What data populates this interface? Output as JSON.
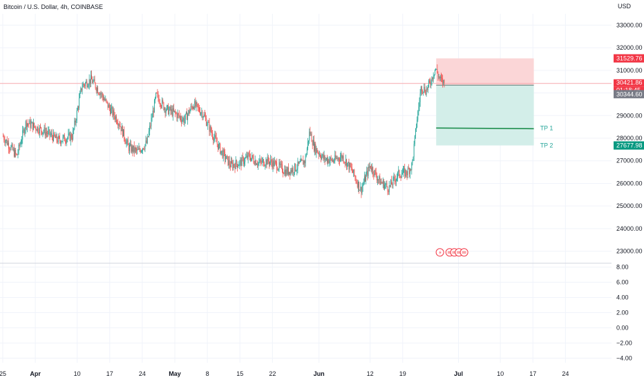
{
  "header": {
    "symbol_title": "Bitcoin / U.S. Dollar, 4h, COINBASE",
    "currency": "USD"
  },
  "colors": {
    "up": "#26a69a",
    "down": "#ef5350",
    "stop_zone": "#fbd6d7",
    "target_zone": "#d3eee9",
    "tag_red": "#f23645",
    "tag_green": "#089981",
    "tag_gray": "#787b86"
  },
  "chart_data": {
    "type": "candlestick",
    "price_axis": {
      "range": [
        22500,
        33500
      ],
      "ticks": [
        "33000.00",
        "32000.00",
        "31000.00",
        "30000.00",
        "29000.00",
        "28000.00",
        "27000.00",
        "26000.00",
        "25000.00",
        "24000.00",
        "23000.00"
      ]
    },
    "oscillator_axis": {
      "range": [
        -4.6,
        8.6
      ],
      "ticks": [
        "8.00",
        "6.00",
        "4.00",
        "2.00",
        "0.00",
        "−2.00",
        "−4.00"
      ]
    },
    "x_axis": {
      "range_days": [
        0,
        92
      ],
      "ticks": [
        {
          "label": "25",
          "day": 0
        },
        {
          "label": "Apr",
          "day": 7
        },
        {
          "label": "10",
          "day": 16
        },
        {
          "label": "17",
          "day": 23
        },
        {
          "label": "24",
          "day": 30
        },
        {
          "label": "May",
          "day": 37
        },
        {
          "label": "8",
          "day": 44
        },
        {
          "label": "15",
          "day": 51
        },
        {
          "label": "22",
          "day": 58
        },
        {
          "label": "Jun",
          "day": 68
        },
        {
          "label": "12",
          "day": 79
        },
        {
          "label": "19",
          "day": 86
        },
        {
          "label": "Jul",
          "day": 98
        },
        {
          "label": "10",
          "day": 107
        },
        {
          "label": "17",
          "day": 114
        },
        {
          "label": "24",
          "day": 121
        }
      ]
    },
    "price_path": [
      [
        0,
        28100
      ],
      [
        3,
        27200
      ],
      [
        5,
        28700
      ],
      [
        7,
        28500
      ],
      [
        9,
        28300
      ],
      [
        12,
        27900
      ],
      [
        15,
        28100
      ],
      [
        17,
        30300
      ],
      [
        19,
        30600
      ],
      [
        21,
        30000
      ],
      [
        23,
        29300
      ],
      [
        25,
        28700
      ],
      [
        27,
        27600
      ],
      [
        29,
        27400
      ],
      [
        31,
        27800
      ],
      [
        33,
        29900
      ],
      [
        35,
        29300
      ],
      [
        37,
        29100
      ],
      [
        39,
        28800
      ],
      [
        41,
        29500
      ],
      [
        43,
        29100
      ],
      [
        45,
        28200
      ],
      [
        47,
        27400
      ],
      [
        49,
        26800
      ],
      [
        51,
        26900
      ],
      [
        53,
        27200
      ],
      [
        55,
        26900
      ],
      [
        57,
        27000
      ],
      [
        59,
        26800
      ],
      [
        61,
        26500
      ],
      [
        63,
        26700
      ],
      [
        65,
        27000
      ],
      [
        66,
        28300
      ],
      [
        67,
        27600
      ],
      [
        69,
        27100
      ],
      [
        71,
        27000
      ],
      [
        73,
        27200
      ],
      [
        75,
        26600
      ],
      [
        77,
        25700
      ],
      [
        79,
        26800
      ],
      [
        81,
        26100
      ],
      [
        83,
        25800
      ],
      [
        85,
        26400
      ],
      [
        87,
        26500
      ],
      [
        88,
        26800
      ],
      [
        89,
        28700
      ],
      [
        90,
        30300
      ],
      [
        91,
        30100
      ],
      [
        92,
        30500
      ],
      [
        93,
        31100
      ],
      [
        94,
        30600
      ],
      [
        95,
        30421
      ]
    ],
    "position": {
      "stop_loss": 31529.76,
      "entry": 30344.6,
      "tp1": 28450,
      "tp2": 27677.98,
      "start_day": 93.2,
      "end_day": 114.2,
      "labels": {
        "tp1": "TP 1",
        "tp2": "TP 2"
      }
    },
    "price_tags": {
      "stop": "31529.76",
      "last": "30421.86",
      "countdown": "01:18:45",
      "entry": "30344.60",
      "tp2": "27677.98"
    },
    "last_price": 30421.86
  }
}
